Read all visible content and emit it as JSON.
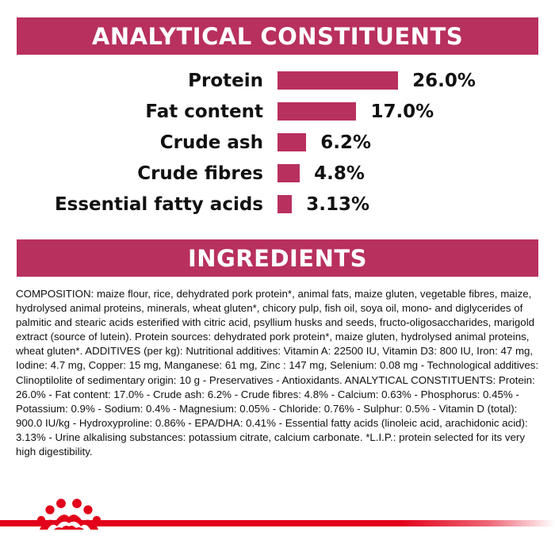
{
  "sections": {
    "analytical_title": "ANALYTICAL CONSTITUENTS",
    "ingredients_title": "INGREDIENTS"
  },
  "colors": {
    "accent": "#b8305e",
    "brand_red": "#e2001a",
    "text": "#111111"
  },
  "chart_data": {
    "type": "bar",
    "orientation": "horizontal",
    "categories": [
      "Protein",
      "Fat content",
      "Crude ash",
      "Crude fibres",
      "Essential fatty acids"
    ],
    "values": [
      26.0,
      17.0,
      6.2,
      4.8,
      3.13
    ],
    "value_labels": [
      "26.0%",
      "17.0%",
      "6.2%",
      "4.8%",
      "3.13%"
    ],
    "unit": "%",
    "grid": false
  },
  "ingredients": {
    "composition_text": "COMPOSITION: maize flour, rice, dehydrated pork protein*, animal fats, maize gluten, vegetable fibres, maize, hydrolysed animal proteins, minerals, wheat gluten*, chicory pulp, fish oil, soya oil, mono- and diglycerides of palmitic and stearic acids esterified with citric acid, psyllium husks and seeds, fructo-oligosaccharides, marigold extract (source of lutein). Protein sources: dehydrated pork protein*, maize gluten, hydrolysed animal proteins, wheat gluten*. ADDITIVES (per kg): Nutritional additives: Vitamin A: 22500 IU, Vitamin D3: 800 IU, Iron: 47 mg, Iodine: 4.7 mg, Copper: 15 mg, Manganese: 61 mg, Zinc : 147 mg, Selenium: 0.08 mg - Technological additives: Clinoptilolite of sedimentary origin: 10 g - Preservatives - Antioxidants. ANALYTICAL CONSTITUENTS: Protein: 26.0% - Fat content: 17.0% - Crude ash: 6.2% - Crude fibres: 4.8% - Calcium: 0.63% - Phosphorus: 0.45% - Potassium: 0.9% - Sodium: 0.4% - Magnesium: 0.05% - Chloride: 0.76% - Sulphur: 0.5% - Vitamin D (total): 900.0 IU/kg - Hydroxyproline: 0.86% - EPA/DHA: 0.41% - Essential fatty acids (linoleic acid, arachidonic acid): 3.13% - Urine alkalising substances: potassium citrate, calcium carbonate. *L.I.P.: protein selected for its very high digestibility."
  },
  "footer": {
    "logo_icon": "royal-canin-crown-icon"
  }
}
